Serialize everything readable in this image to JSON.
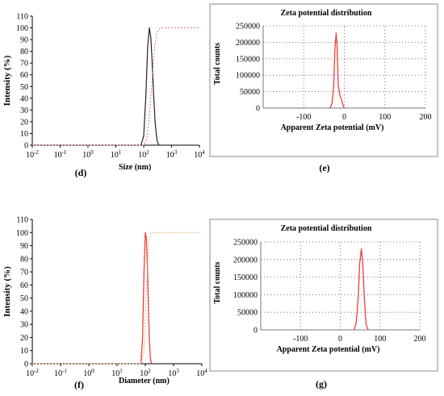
{
  "panels": [
    {
      "id": "d",
      "panel_label": "(d)",
      "panel_label_style": "bold",
      "chart_data": {
        "type": "line",
        "title": "",
        "xlabel": "Size (nm)",
        "ylabel": "Intensity (%)",
        "x_scale": "log",
        "xticks": [
          "10-2",
          "10-1",
          "100",
          "101",
          "102",
          "103",
          "104"
        ],
        "xlim": [
          0.01,
          10000
        ],
        "ylim": [
          0,
          110
        ],
        "yticks": [
          "0",
          "10",
          "20",
          "30",
          "40",
          "50",
          "60",
          "70",
          "80",
          "90",
          "100",
          "110"
        ],
        "grid": false,
        "series": [
          {
            "style": "solid-black",
            "x": [
              80,
              100,
              120,
              140,
              160,
              180,
              200,
              230,
              260,
              300,
              350
            ],
            "y": [
              0,
              8,
              42,
              85,
              100,
              92,
              72,
              40,
              18,
              4,
              0
            ]
          },
          {
            "style": "dotted-red-cumulative",
            "x": [
              0.01,
              100,
              130,
              160,
              200,
              250,
              300,
              400,
              10000
            ],
            "y": [
              0,
              0,
              5,
              25,
              55,
              85,
              96,
              100,
              100
            ]
          }
        ]
      }
    },
    {
      "id": "e",
      "panel_label": "(e)",
      "panel_label_style": "bold",
      "chart_data": {
        "type": "line",
        "title": "Zeta potential distribution",
        "xlabel": "Apparent Zeta potential (mV)",
        "ylabel": "Total counts",
        "xlim": [
          -200,
          200
        ],
        "xticks": [
          "-100",
          "0",
          "100",
          "200"
        ],
        "ylim": [
          0,
          250000
        ],
        "yticks": [
          "0",
          "50000",
          "100000",
          "150000",
          "200000",
          "250000"
        ],
        "grid": true,
        "series": [
          {
            "style": "solid-red",
            "x": [
              -35,
              -30,
              -26,
              -23,
              -20,
              -18,
              -15,
              -11,
              -7,
              -3,
              0
            ],
            "y": [
              0,
              15000,
              70000,
              180000,
              228000,
              190000,
              70000,
              40000,
              25000,
              8000,
              0
            ]
          }
        ]
      }
    },
    {
      "id": "f",
      "panel_label": "(f)",
      "panel_label_style": "bold",
      "chart_data": {
        "type": "line",
        "title": "",
        "xlabel": "Diameter (nm)",
        "ylabel": "Intensity (%)",
        "x_scale": "log",
        "xticks": [
          "10-2",
          "10-1",
          "100",
          "101",
          "102",
          "103",
          "104"
        ],
        "xlim": [
          0.01,
          10000
        ],
        "ylim": [
          0,
          110
        ],
        "yticks": [
          "0",
          "10",
          "20",
          "30",
          "40",
          "50",
          "60",
          "70",
          "80",
          "90",
          "100",
          "110"
        ],
        "grid": false,
        "series": [
          {
            "style": "solid-red",
            "x": [
              70,
              80,
              90,
              100,
              110,
              120,
              130,
              140,
              150,
              165
            ],
            "y": [
              0,
              20,
              70,
              100,
              95,
              70,
              40,
              18,
              5,
              0
            ]
          },
          {
            "style": "dotted-orange-cumulative",
            "x": [
              0.01,
              70,
              90,
              110,
              130,
              160,
              10000
            ],
            "y": [
              0,
              0,
              10,
              55,
              90,
              100,
              100
            ]
          }
        ]
      }
    },
    {
      "id": "g",
      "panel_label": "(g)",
      "panel_label_style": "bold",
      "chart_data": {
        "type": "line",
        "title": "Zeta potential distribution",
        "xlabel": "Apparent Zeta potential (mV)",
        "ylabel": "Total counts",
        "xlim": [
          -200,
          200
        ],
        "xticks": [
          "-100",
          "0",
          "100",
          "200"
        ],
        "ylim": [
          0,
          250000
        ],
        "yticks": [
          "0",
          "50000",
          "100000",
          "150000",
          "200000",
          "250000"
        ],
        "grid": true,
        "series": [
          {
            "style": "solid-red",
            "x": [
              35,
              40,
              45,
              49,
              53,
              56,
              60,
              65,
              70
            ],
            "y": [
              0,
              20000,
              90000,
              190000,
              230000,
              200000,
              100000,
              15000,
              0
            ]
          }
        ]
      }
    }
  ],
  "colors": {
    "red": "#e8403a",
    "black": "#222222",
    "dotted_red": "#e87070",
    "dotted_orange": "#e8b070",
    "grid": "#555555"
  }
}
